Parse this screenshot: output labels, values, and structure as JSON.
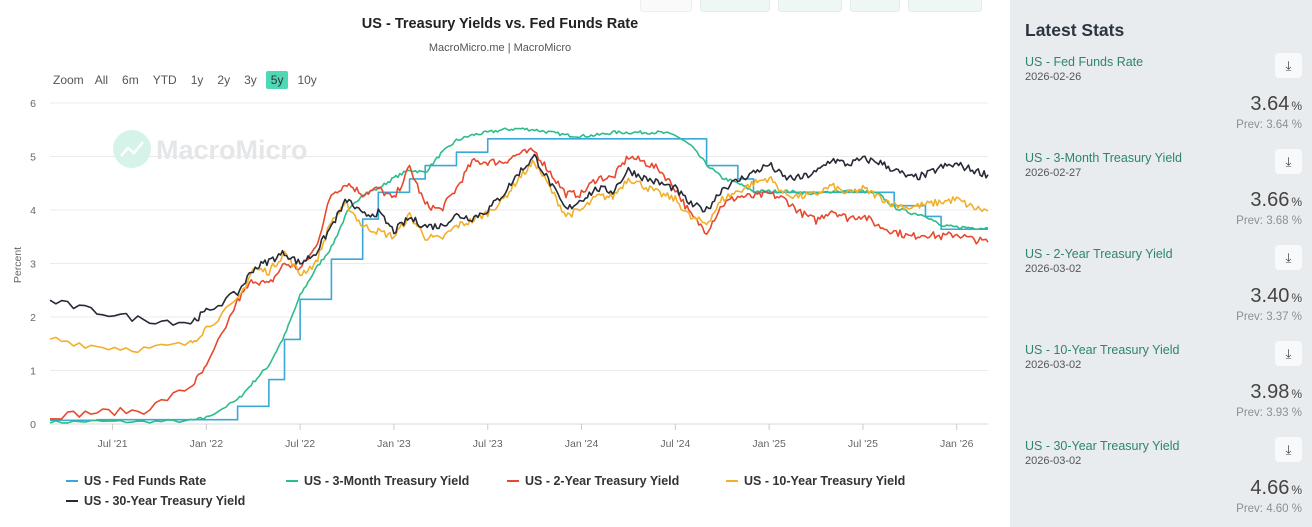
{
  "toolbar": {
    "range_label": "Zoom",
    "ranges": [
      "All",
      "6m",
      "YTD",
      "1y",
      "2y",
      "3y",
      "5y",
      "10y"
    ],
    "active_range": "5y"
  },
  "watermark": "MacroMicro",
  "colors": {
    "fed_funds": "#3aa8d8",
    "three_month": "#2dbd8a",
    "two_year": "#e8492e",
    "ten_year": "#f2b02a",
    "thirty_year": "#262a36",
    "accent": "#4fd8b5"
  },
  "chart_data": {
    "type": "line",
    "title": "US - Treasury Yields vs. Fed Funds Rate",
    "subtitle": "MacroMicro.me | MacroMicro",
    "xlabel": "",
    "ylabel": "Percent",
    "ylim": [
      0,
      6
    ],
    "yticks": [
      "0",
      "1",
      "2",
      "3",
      "4",
      "5",
      "6"
    ],
    "xlim": [
      "2021-03",
      "2026-03"
    ],
    "xticks": [
      "Jul '21",
      "Jan '22",
      "Jul '22",
      "Jan '23",
      "Jul '23",
      "Jan '24",
      "Jul '24",
      "Jan '25",
      "Jul '25",
      "Jan '26"
    ],
    "grid": true,
    "legend_position": "bottom",
    "x": [
      "2021-03",
      "2021-06",
      "2021-09",
      "2021-12",
      "2022-01",
      "2022-03",
      "2022-04",
      "2022-05",
      "2022-06",
      "2022-07",
      "2022-08",
      "2022-09",
      "2022-10",
      "2022-11",
      "2022-12",
      "2023-01",
      "2023-02",
      "2023-03",
      "2023-04",
      "2023-05",
      "2023-06",
      "2023-07",
      "2023-08",
      "2023-09",
      "2023-10",
      "2023-11",
      "2023-12",
      "2024-01",
      "2024-02",
      "2024-03",
      "2024-04",
      "2024-05",
      "2024-06",
      "2024-07",
      "2024-08",
      "2024-09",
      "2024-10",
      "2024-11",
      "2024-12",
      "2025-01",
      "2025-02",
      "2025-03",
      "2025-04",
      "2025-05",
      "2025-06",
      "2025-07",
      "2025-08",
      "2025-09",
      "2025-10",
      "2025-11",
      "2025-12",
      "2026-01",
      "2026-02",
      "2026-03"
    ],
    "series": [
      {
        "name": "US - Fed Funds Rate",
        "key": "fed_funds",
        "step": true,
        "values": [
          0.07,
          0.08,
          0.08,
          0.08,
          0.08,
          0.33,
          0.33,
          0.83,
          1.58,
          2.33,
          2.33,
          3.08,
          3.08,
          3.83,
          4.33,
          4.33,
          4.58,
          4.83,
          4.83,
          5.08,
          5.08,
          5.33,
          5.33,
          5.33,
          5.33,
          5.33,
          5.33,
          5.33,
          5.33,
          5.33,
          5.33,
          5.33,
          5.33,
          5.33,
          5.33,
          4.83,
          4.83,
          4.58,
          4.33,
          4.33,
          4.33,
          4.33,
          4.33,
          4.33,
          4.33,
          4.33,
          4.33,
          4.08,
          4.08,
          3.88,
          3.64,
          3.64,
          3.64,
          3.64
        ]
      },
      {
        "name": "US - 3-Month Treasury Yield",
        "key": "three_month",
        "values": [
          0.03,
          0.05,
          0.04,
          0.06,
          0.12,
          0.45,
          0.78,
          1.1,
          1.65,
          2.4,
          2.9,
          3.3,
          3.95,
          4.3,
          4.4,
          4.6,
          4.75,
          4.7,
          5.05,
          5.3,
          5.4,
          5.45,
          5.5,
          5.52,
          5.5,
          5.45,
          5.4,
          5.38,
          5.4,
          5.45,
          5.45,
          5.45,
          5.45,
          5.4,
          5.2,
          4.85,
          4.6,
          4.5,
          4.35,
          4.35,
          4.35,
          4.33,
          4.3,
          4.35,
          4.35,
          4.35,
          4.3,
          4.05,
          3.95,
          3.9,
          3.7,
          3.68,
          3.67,
          3.66
        ]
      },
      {
        "name": "US - 2-Year Treasury Yield",
        "key": "two_year",
        "values": [
          0.15,
          0.22,
          0.25,
          0.7,
          1.05,
          2.3,
          2.7,
          2.6,
          3.0,
          2.9,
          3.3,
          4.3,
          4.5,
          4.3,
          4.4,
          4.2,
          4.8,
          4.1,
          4.0,
          4.4,
          4.9,
          4.9,
          4.9,
          5.05,
          5.1,
          4.7,
          4.3,
          4.3,
          4.6,
          4.6,
          5.0,
          4.9,
          4.75,
          4.4,
          3.9,
          3.6,
          4.1,
          4.25,
          4.25,
          4.3,
          4.2,
          3.95,
          3.8,
          4.0,
          3.85,
          3.9,
          3.7,
          3.6,
          3.5,
          3.55,
          3.5,
          3.55,
          3.45,
          3.4
        ]
      },
      {
        "name": "US - 10-Year Treasury Yield",
        "key": "ten_year",
        "values": [
          1.6,
          1.45,
          1.4,
          1.5,
          1.8,
          2.3,
          2.9,
          2.85,
          3.2,
          2.8,
          3.0,
          3.8,
          4.1,
          3.7,
          3.6,
          3.5,
          3.9,
          3.5,
          3.45,
          3.7,
          3.8,
          3.95,
          4.2,
          4.6,
          4.9,
          4.4,
          3.9,
          4.0,
          4.25,
          4.25,
          4.6,
          4.45,
          4.3,
          4.2,
          3.85,
          3.75,
          4.2,
          4.35,
          4.5,
          4.6,
          4.3,
          4.25,
          4.3,
          4.45,
          4.3,
          4.4,
          4.25,
          4.1,
          4.05,
          4.1,
          4.15,
          4.2,
          4.05,
          3.98
        ]
      },
      {
        "name": "US - 30-Year Treasury Yield",
        "key": "thirty_year",
        "values": [
          2.3,
          2.1,
          1.95,
          1.9,
          2.1,
          2.45,
          2.9,
          3.05,
          3.2,
          3.0,
          3.2,
          3.7,
          4.2,
          3.9,
          3.95,
          3.6,
          3.85,
          3.7,
          3.7,
          3.9,
          3.85,
          4.0,
          4.3,
          4.7,
          5.0,
          4.5,
          4.0,
          4.2,
          4.4,
          4.35,
          4.75,
          4.6,
          4.5,
          4.4,
          4.1,
          4.0,
          4.4,
          4.55,
          4.7,
          4.85,
          4.6,
          4.6,
          4.7,
          4.95,
          4.85,
          4.95,
          4.9,
          4.75,
          4.6,
          4.65,
          4.8,
          4.85,
          4.75,
          4.66
        ]
      }
    ]
  },
  "side": {
    "title": "Latest Stats",
    "stats": [
      {
        "name": "US - Fed Funds Rate",
        "date": "2026-02-26",
        "value": "3.64",
        "unit": "%",
        "prev": "Prev: 3.64 %"
      },
      {
        "name": "US - 3-Month Treasury Yield",
        "date": "2026-02-27",
        "value": "3.66",
        "unit": "%",
        "prev": "Prev: 3.68 %"
      },
      {
        "name": "US - 2-Year Treasury Yield",
        "date": "2026-03-02",
        "value": "3.40",
        "unit": "%",
        "prev": "Prev: 3.37 %"
      },
      {
        "name": "US - 10-Year Treasury Yield",
        "date": "2026-03-02",
        "value": "3.98",
        "unit": "%",
        "prev": "Prev: 3.93 %"
      },
      {
        "name": "US - 30-Year Treasury Yield",
        "date": "2026-03-02",
        "value": "4.66",
        "unit": "%",
        "prev": "Prev: 4.60 %"
      }
    ],
    "download_icon": "download-icon"
  }
}
